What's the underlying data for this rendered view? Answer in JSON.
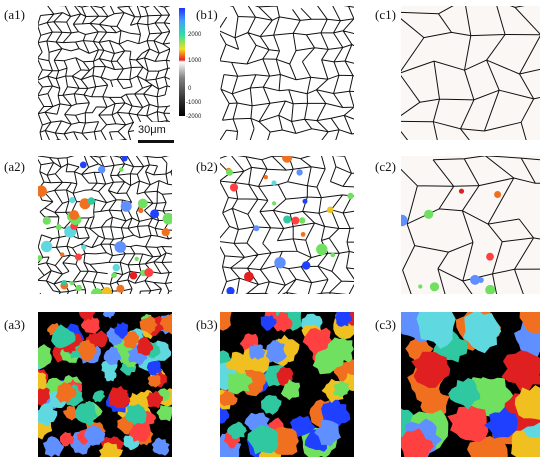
{
  "figure": {
    "labels": {
      "a1": "(a1)",
      "b1": "(b1)",
      "c1": "(c1)",
      "a2": "(a2)",
      "b2": "(b2)",
      "c2": "(c2)",
      "a3": "(a3)",
      "b3": "(b3)",
      "c3": "(c3)"
    },
    "scale_bar": {
      "text": "30μm"
    },
    "colorbar": {
      "ticks": [
        "2000",
        "1000",
        "0",
        "-1000",
        "-2000"
      ]
    },
    "colors": {
      "boundary": "#111111",
      "background_black": "#000000",
      "cell_fill": "#fbf7f5",
      "accent": [
        "#e02020",
        "#f07020",
        "#f0c020",
        "#70e060",
        "#30c8a0",
        "#60d8e0",
        "#6090ff",
        "#2040ff",
        "#ff4040"
      ]
    }
  }
}
